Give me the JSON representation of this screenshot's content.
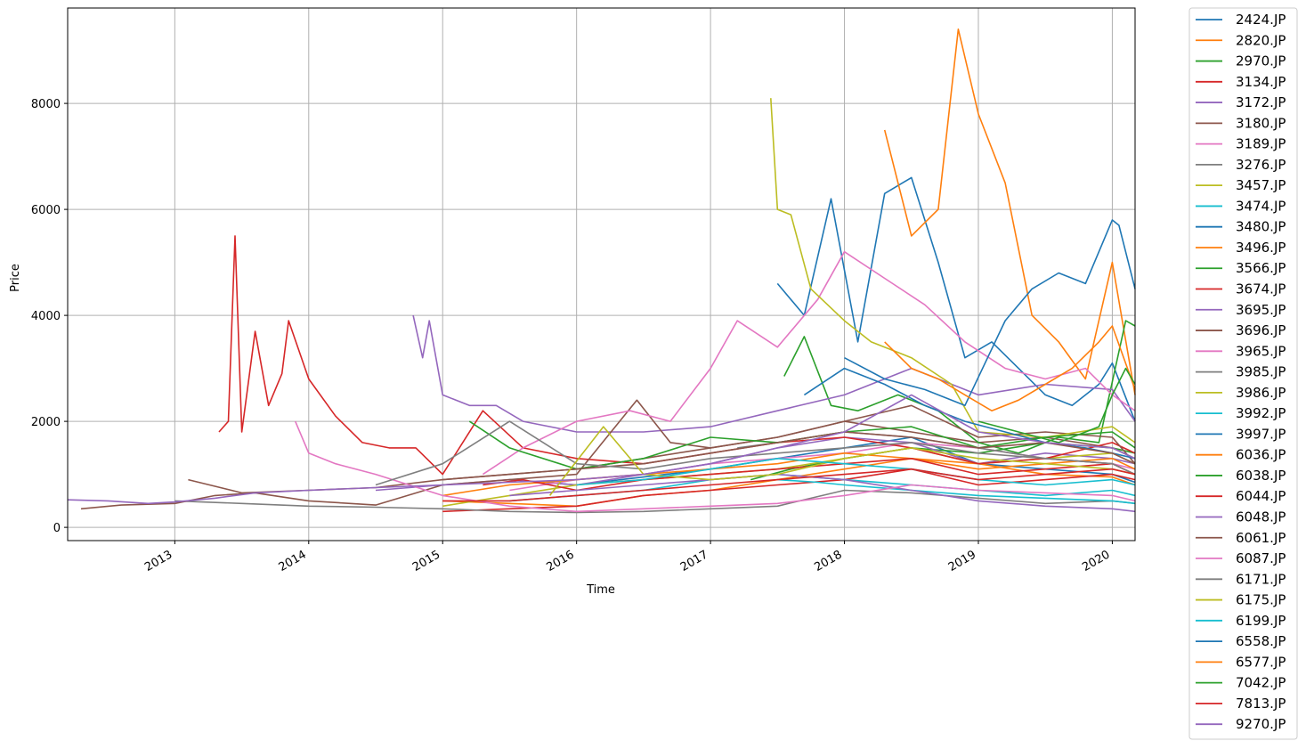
{
  "chart_data": {
    "type": "line",
    "title": "",
    "xlabel": "Time",
    "ylabel": "Price",
    "xlim": [
      2012.2,
      2020.17
    ],
    "ylim": [
      -250,
      9800
    ],
    "xticks": [
      2013,
      2014,
      2015,
      2016,
      2017,
      2018,
      2019,
      2020
    ],
    "yticks": [
      0,
      2000,
      4000,
      6000,
      8000
    ],
    "grid": true,
    "legend": "outside-right",
    "series": [
      {
        "name": "2424.JP",
        "color": "#1f77b4",
        "x": [
          2015.5,
          2016.0,
          2016.5,
          2017.0,
          2017.5,
          2018.0,
          2018.5,
          2019.0,
          2019.5,
          2020.0,
          2020.17
        ],
        "y": [
          900,
          800,
          950,
          1100,
          1300,
          1500,
          1700,
          1200,
          1100,
          1000,
          850
        ]
      },
      {
        "name": "2820.JP",
        "color": "#ff7f0e",
        "x": [
          2015.0,
          2015.5,
          2016.0,
          2016.5,
          2017.0,
          2017.5,
          2018.0,
          2018.5,
          2019.0,
          2019.5,
          2020.0,
          2020.17
        ],
        "y": [
          500,
          450,
          400,
          600,
          700,
          900,
          1100,
          1300,
          1200,
          1000,
          950,
          800
        ]
      },
      {
        "name": "2970.JP",
        "color": "#2ca02c",
        "x": [
          2017.3,
          2017.6,
          2018.0,
          2018.5,
          2019.0,
          2019.5,
          2020.0,
          2020.17
        ],
        "y": [
          900,
          1100,
          1300,
          1500,
          1400,
          1600,
          1500,
          1400
        ]
      },
      {
        "name": "3134.JP",
        "color": "#d62728",
        "x": [
          2015.0,
          2015.5,
          2016.0,
          2016.5,
          2017.0,
          2017.5,
          2018.0,
          2018.5,
          2019.0,
          2019.5,
          2020.0,
          2020.17
        ],
        "y": [
          300,
          350,
          400,
          600,
          700,
          800,
          900,
          1100,
          800,
          900,
          1000,
          900
        ]
      },
      {
        "name": "3172.JP",
        "color": "#9467bd",
        "x": [
          2014.5,
          2015.0,
          2015.5,
          2016.0,
          2016.5,
          2017.0,
          2017.5,
          2018.0,
          2018.5,
          2019.0,
          2019.5,
          2020.0,
          2020.17
        ],
        "y": [
          700,
          800,
          900,
          800,
          1000,
          1200,
          1500,
          1700,
          1600,
          1200,
          1400,
          1300,
          1200
        ]
      },
      {
        "name": "3180.JP",
        "color": "#8c564b",
        "x": [
          2013.1,
          2013.5,
          2014.0,
          2014.5,
          2015.0,
          2015.5,
          2016.0,
          2016.5,
          2017.0,
          2017.5,
          2018.0,
          2018.5,
          2019.0,
          2019.5,
          2020.0,
          2020.17
        ],
        "y": [
          900,
          650,
          700,
          750,
          900,
          1000,
          1100,
          1300,
          1500,
          1700,
          2000,
          1800,
          1600,
          1700,
          1500,
          1300
        ]
      },
      {
        "name": "3189.JP",
        "color": "#e377c2",
        "x": [
          2015.5,
          2016.0,
          2016.5,
          2017.0,
          2017.5,
          2018.0,
          2018.5,
          2019.0,
          2019.5,
          2020.0,
          2020.17
        ],
        "y": [
          700,
          900,
          1000,
          1200,
          1300,
          1400,
          1600,
          1500,
          1300,
          1200,
          1100
        ]
      },
      {
        "name": "3276.JP",
        "color": "#7f7f7f",
        "x": [
          2013.0,
          2013.5,
          2014.0,
          2014.5,
          2015.0,
          2015.5,
          2016.0,
          2016.5,
          2017.0,
          2017.5,
          2018.0,
          2018.5,
          2019.0,
          2019.5,
          2020.0,
          2020.17
        ],
        "y": [
          500,
          450,
          400,
          380,
          350,
          300,
          280,
          300,
          350,
          400,
          700,
          650,
          550,
          450,
          500,
          450
        ]
      },
      {
        "name": "3457.JP",
        "color": "#bcbd22",
        "x": [
          2015.0,
          2015.5,
          2016.0,
          2016.5,
          2017.0,
          2017.5,
          2018.0,
          2018.5,
          2019.0,
          2019.5,
          2020.0,
          2020.17
        ],
        "y": [
          400,
          600,
          800,
          900,
          1000,
          1100,
          1300,
          1500,
          1200,
          1300,
          1400,
          1200
        ]
      },
      {
        "name": "3474.JP",
        "color": "#17becf",
        "x": [
          2015.5,
          2016.0,
          2016.5,
          2017.0,
          2017.5,
          2018.0,
          2018.5,
          2019.0,
          2019.5,
          2020.0,
          2020.17
        ],
        "y": [
          500,
          600,
          700,
          900,
          1000,
          900,
          800,
          700,
          600,
          700,
          600
        ]
      },
      {
        "name": "3480.JP",
        "color": "#1f77b4",
        "x": [
          2017.5,
          2017.7,
          2017.9,
          2018.1,
          2018.3,
          2018.5,
          2018.7,
          2018.9,
          2019.1,
          2019.3,
          2019.5,
          2019.7,
          2019.9,
          2020.0,
          2020.17
        ],
        "y": [
          4600,
          4000,
          6200,
          3500,
          6300,
          6600,
          5000,
          3200,
          3500,
          3000,
          2500,
          2300,
          2700,
          3100,
          2000
        ]
      },
      {
        "name": "3496.JP",
        "color": "#ff7f0e",
        "x": [
          2018.3,
          2018.5,
          2018.7,
          2018.85,
          2019.0,
          2019.2,
          2019.4,
          2019.6,
          2019.8,
          2020.0,
          2020.17
        ],
        "y": [
          7500,
          5500,
          6000,
          9400,
          7800,
          6500,
          4000,
          3500,
          2800,
          5000,
          2500
        ]
      },
      {
        "name": "3566.JP",
        "color": "#2ca02c",
        "x": [
          2017.55,
          2017.7,
          2017.9,
          2018.1,
          2018.4,
          2018.7,
          2019.0,
          2019.3,
          2019.6,
          2019.9,
          2020.1,
          2020.17
        ],
        "y": [
          2850,
          3600,
          2300,
          2200,
          2500,
          2200,
          1600,
          1400,
          1700,
          1600,
          3900,
          3800
        ]
      },
      {
        "name": "3674.JP",
        "color": "#d62728",
        "x": [
          2013.33,
          2013.4,
          2013.45,
          2013.5,
          2013.6,
          2013.7,
          2013.8,
          2013.85,
          2014.0,
          2014.2,
          2014.4,
          2014.6,
          2014.8,
          2015.0,
          2015.3,
          2015.6,
          2016.0,
          2016.5,
          2017.0,
          2017.5,
          2018.0,
          2018.5,
          2019.0,
          2019.5,
          2020.0,
          2020.17
        ],
        "y": [
          1800,
          2000,
          5500,
          1800,
          3700,
          2300,
          2900,
          3900,
          2800,
          2100,
          1600,
          1500,
          1500,
          1000,
          2200,
          1500,
          1300,
          1200,
          1400,
          1600,
          1700,
          1500,
          1200,
          1300,
          1600,
          1400
        ]
      },
      {
        "name": "3695.JP",
        "color": "#9467bd",
        "x": [
          2014.78,
          2014.85,
          2014.9,
          2015.0,
          2015.2,
          2015.4,
          2015.6,
          2016.0,
          2016.5,
          2017.0,
          2017.5,
          2018.0,
          2018.5,
          2019.0,
          2019.5,
          2020.0,
          2020.17
        ],
        "y": [
          4000,
          3200,
          3900,
          2500,
          2300,
          2300,
          2000,
          1800,
          1800,
          1900,
          2200,
          2500,
          3000,
          2500,
          2700,
          2600,
          2000
        ]
      },
      {
        "name": "3696.JP",
        "color": "#8c564b",
        "x": [
          2012.3,
          2012.6,
          2013.0,
          2013.3,
          2013.6,
          2014.0,
          2014.5,
          2015.0,
          2015.5,
          2016.0,
          2016.45,
          2016.7,
          2017.0,
          2017.5,
          2018.0,
          2018.5,
          2019.0,
          2019.5,
          2020.0,
          2020.17
        ],
        "y": [
          350,
          420,
          450,
          600,
          650,
          500,
          420,
          800,
          900,
          1000,
          2400,
          1600,
          1500,
          1700,
          2000,
          2300,
          1700,
          1800,
          1700,
          1200
        ]
      },
      {
        "name": "3965.JP",
        "color": "#e377c2",
        "x": [
          2015.3,
          2015.6,
          2016.0,
          2016.4,
          2016.7,
          2017.0,
          2017.2,
          2017.5,
          2017.8,
          2018.0,
          2018.3,
          2018.6,
          2018.9,
          2019.2,
          2019.5,
          2019.8,
          2020.0,
          2020.17
        ],
        "y": [
          1000,
          1500,
          2000,
          2200,
          2000,
          3000,
          3900,
          3400,
          4300,
          5200,
          4700,
          4200,
          3500,
          3000,
          2800,
          3000,
          2500,
          2200
        ]
      },
      {
        "name": "3985.JP",
        "color": "#7f7f7f",
        "x": [
          2017.2,
          2017.5,
          2018.0,
          2018.5,
          2019.0,
          2019.5,
          2020.0,
          2020.17
        ],
        "y": [
          1500,
          1600,
          1800,
          1700,
          1500,
          1300,
          1200,
          1000
        ]
      },
      {
        "name": "3986.JP",
        "color": "#bcbd22",
        "x": [
          2017.45,
          2017.5,
          2017.6,
          2017.75,
          2018.0,
          2018.2,
          2018.5,
          2018.8,
          2019.0,
          2019.5,
          2020.0,
          2020.17
        ],
        "y": [
          8100,
          6000,
          5900,
          4500,
          3900,
          3500,
          3200,
          2700,
          1800,
          1700,
          1900,
          1600
        ]
      },
      {
        "name": "3992.JP",
        "color": "#17becf",
        "x": [
          2017.5,
          2017.8,
          2018.0,
          2018.5,
          2019.0,
          2019.5,
          2020.0,
          2020.17
        ],
        "y": [
          900,
          850,
          800,
          700,
          600,
          550,
          500,
          450
        ]
      },
      {
        "name": "3997.JP",
        "color": "#1f77b4",
        "x": [
          2017.7,
          2018.0,
          2018.3,
          2018.6,
          2018.9,
          2019.2,
          2019.5,
          2019.8,
          2020.0,
          2020.17
        ],
        "y": [
          2500,
          3000,
          2700,
          2300,
          2000,
          1800,
          1600,
          1500,
          1400,
          1300
        ]
      },
      {
        "name": "6036.JP",
        "color": "#ff7f0e",
        "x": [
          2015.0,
          2015.5,
          2016.0,
          2016.5,
          2017.0,
          2017.5,
          2018.0,
          2018.5,
          2019.0,
          2019.5,
          2020.0,
          2020.17
        ],
        "y": [
          600,
          800,
          900,
          1000,
          1100,
          1200,
          1400,
          1300,
          1100,
          1200,
          1300,
          1100
        ]
      },
      {
        "name": "6038.JP",
        "color": "#2ca02c",
        "x": [
          2015.2,
          2015.5,
          2016.0,
          2016.5,
          2017.0,
          2017.5,
          2018.0,
          2018.5,
          2019.0,
          2019.5,
          2020.0,
          2020.17
        ],
        "y": [
          2000,
          1500,
          1100,
          1300,
          1700,
          1600,
          1800,
          1900,
          1500,
          1700,
          1800,
          1500
        ]
      },
      {
        "name": "6044.JP",
        "color": "#d62728",
        "x": [
          2015.3,
          2015.6,
          2016.0,
          2016.5,
          2017.0,
          2017.5,
          2018.0,
          2018.5,
          2019.0,
          2019.5,
          2020.0,
          2020.17
        ],
        "y": [
          800,
          900,
          700,
          900,
          1000,
          1100,
          1200,
          1300,
          1000,
          1100,
          1200,
          1000
        ]
      },
      {
        "name": "6048.JP",
        "color": "#9467bd",
        "x": [
          2015.5,
          2016.0,
          2016.5,
          2017.0,
          2017.5,
          2018.0,
          2018.5,
          2019.0,
          2019.5,
          2020.0,
          2020.17
        ],
        "y": [
          600,
          700,
          800,
          900,
          1000,
          900,
          700,
          500,
          400,
          350,
          300
        ]
      },
      {
        "name": "6061.JP",
        "color": "#8c564b",
        "x": [
          2015.0,
          2015.5,
          2016.0,
          2016.5,
          2017.0,
          2017.5,
          2018.0,
          2018.5,
          2019.0,
          2019.5,
          2020.0,
          2020.17
        ],
        "y": [
          900,
          1000,
          1100,
          1200,
          1400,
          1600,
          1800,
          1700,
          1500,
          1600,
          1400,
          1200
        ]
      },
      {
        "name": "6087.JP",
        "color": "#e377c2",
        "x": [
          2013.9,
          2014.0,
          2014.2,
          2014.5,
          2015.0,
          2015.5,
          2016.0,
          2016.5,
          2017.0,
          2017.5,
          2018.0,
          2018.5,
          2019.0,
          2019.5,
          2020.0,
          2020.17
        ],
        "y": [
          2000,
          1400,
          1200,
          1000,
          600,
          400,
          300,
          350,
          400,
          450,
          600,
          800,
          700,
          650,
          600,
          500
        ]
      },
      {
        "name": "6171.JP",
        "color": "#7f7f7f",
        "x": [
          2014.5,
          2015.0,
          2015.5,
          2016.0,
          2016.5,
          2017.0,
          2017.5,
          2018.0,
          2018.5,
          2019.0,
          2019.5,
          2020.0,
          2020.17
        ],
        "y": [
          800,
          1200,
          2000,
          1200,
          1100,
          1300,
          1400,
          1500,
          1600,
          1400,
          1300,
          1200,
          1000
        ]
      },
      {
        "name": "6175.JP",
        "color": "#bcbd22",
        "x": [
          2015.8,
          2016.2,
          2016.5,
          2017.0,
          2017.5,
          2018.0,
          2018.5,
          2019.0,
          2019.5,
          2020.0,
          2020.17
        ],
        "y": [
          600,
          1900,
          1000,
          900,
          1000,
          1300,
          1500,
          1300,
          1200,
          1100,
          1000
        ]
      },
      {
        "name": "6199.JP",
        "color": "#17becf",
        "x": [
          2016.0,
          2016.5,
          2017.0,
          2017.5,
          2018.0,
          2018.5,
          2019.0,
          2019.5,
          2020.0,
          2020.17
        ],
        "y": [
          800,
          900,
          1100,
          1300,
          1200,
          1100,
          900,
          800,
          900,
          800
        ]
      },
      {
        "name": "6558.JP",
        "color": "#1f77b4",
        "x": [
          2018.0,
          2018.3,
          2018.6,
          2018.9,
          2019.2,
          2019.4,
          2019.6,
          2019.8,
          2020.0,
          2020.05,
          2020.17
        ],
        "y": [
          3200,
          2800,
          2600,
          2300,
          3900,
          4500,
          4800,
          4600,
          5800,
          5700,
          4500
        ]
      },
      {
        "name": "6577.JP",
        "color": "#ff7f0e",
        "x": [
          2018.3,
          2018.5,
          2018.7,
          2018.9,
          2019.1,
          2019.3,
          2019.5,
          2019.7,
          2019.9,
          2020.0,
          2020.17
        ],
        "y": [
          3500,
          3000,
          2800,
          2500,
          2200,
          2400,
          2700,
          3000,
          3500,
          3800,
          2600
        ]
      },
      {
        "name": "7042.JP",
        "color": "#2ca02c",
        "x": [
          2019.0,
          2019.3,
          2019.6,
          2019.9,
          2020.0,
          2020.1,
          2020.17
        ],
        "y": [
          2000,
          1800,
          1600,
          1900,
          2500,
          3000,
          2700
        ]
      },
      {
        "name": "7813.JP",
        "color": "#d62728",
        "x": [
          2015.0,
          2015.5,
          2016.0,
          2016.5,
          2017.0,
          2017.5,
          2018.0,
          2018.5,
          2019.0,
          2019.5,
          2020.0,
          2020.17
        ],
        "y": [
          500,
          500,
          600,
          700,
          800,
          900,
          1000,
          1100,
          900,
          1000,
          1100,
          1000
        ]
      },
      {
        "name": "9270.JP",
        "color": "#9467bd",
        "x": [
          2012.2,
          2012.5,
          2012.8,
          2013.0,
          2013.3,
          2013.6,
          2014.0,
          2014.5,
          2015.0,
          2015.5,
          2016.0,
          2016.5,
          2017.0,
          2017.5,
          2018.0,
          2018.5,
          2019.0,
          2019.5,
          2020.0,
          2020.17
        ],
        "y": [
          520,
          500,
          450,
          480,
          550,
          650,
          700,
          750,
          800,
          850,
          900,
          1000,
          1200,
          1500,
          1800,
          2500,
          1800,
          1600,
          1500,
          1300
        ]
      }
    ]
  }
}
